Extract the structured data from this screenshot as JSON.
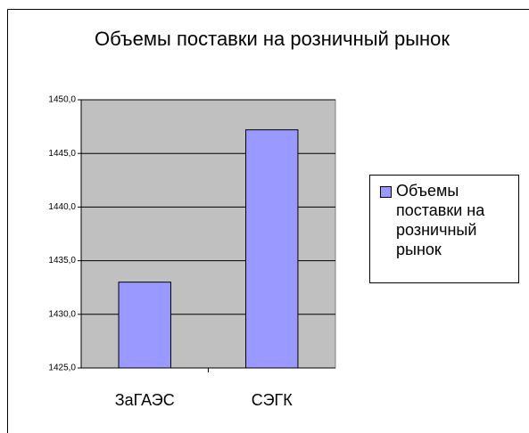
{
  "chart_data": {
    "type": "bar",
    "title": "Объемы поставки на розничный рынок",
    "categories": [
      "ЗаГАЭС",
      "СЭГК"
    ],
    "series": [
      {
        "name": "Объемы поставки на розничный рынок",
        "color": "#9999ff",
        "values": [
          1433,
          1447.2
        ]
      }
    ],
    "ylim": [
      1425,
      1450
    ],
    "yticks": [
      {
        "value": 1425,
        "label": "1425,0"
      },
      {
        "value": 1430,
        "label": "1430,0"
      },
      {
        "value": 1435,
        "label": "1435,0"
      },
      {
        "value": 1440,
        "label": "1440,0"
      },
      {
        "value": 1445,
        "label": "1445,0"
      },
      {
        "value": 1450,
        "label": "1450,0"
      }
    ],
    "grid": true,
    "legend": "right"
  }
}
